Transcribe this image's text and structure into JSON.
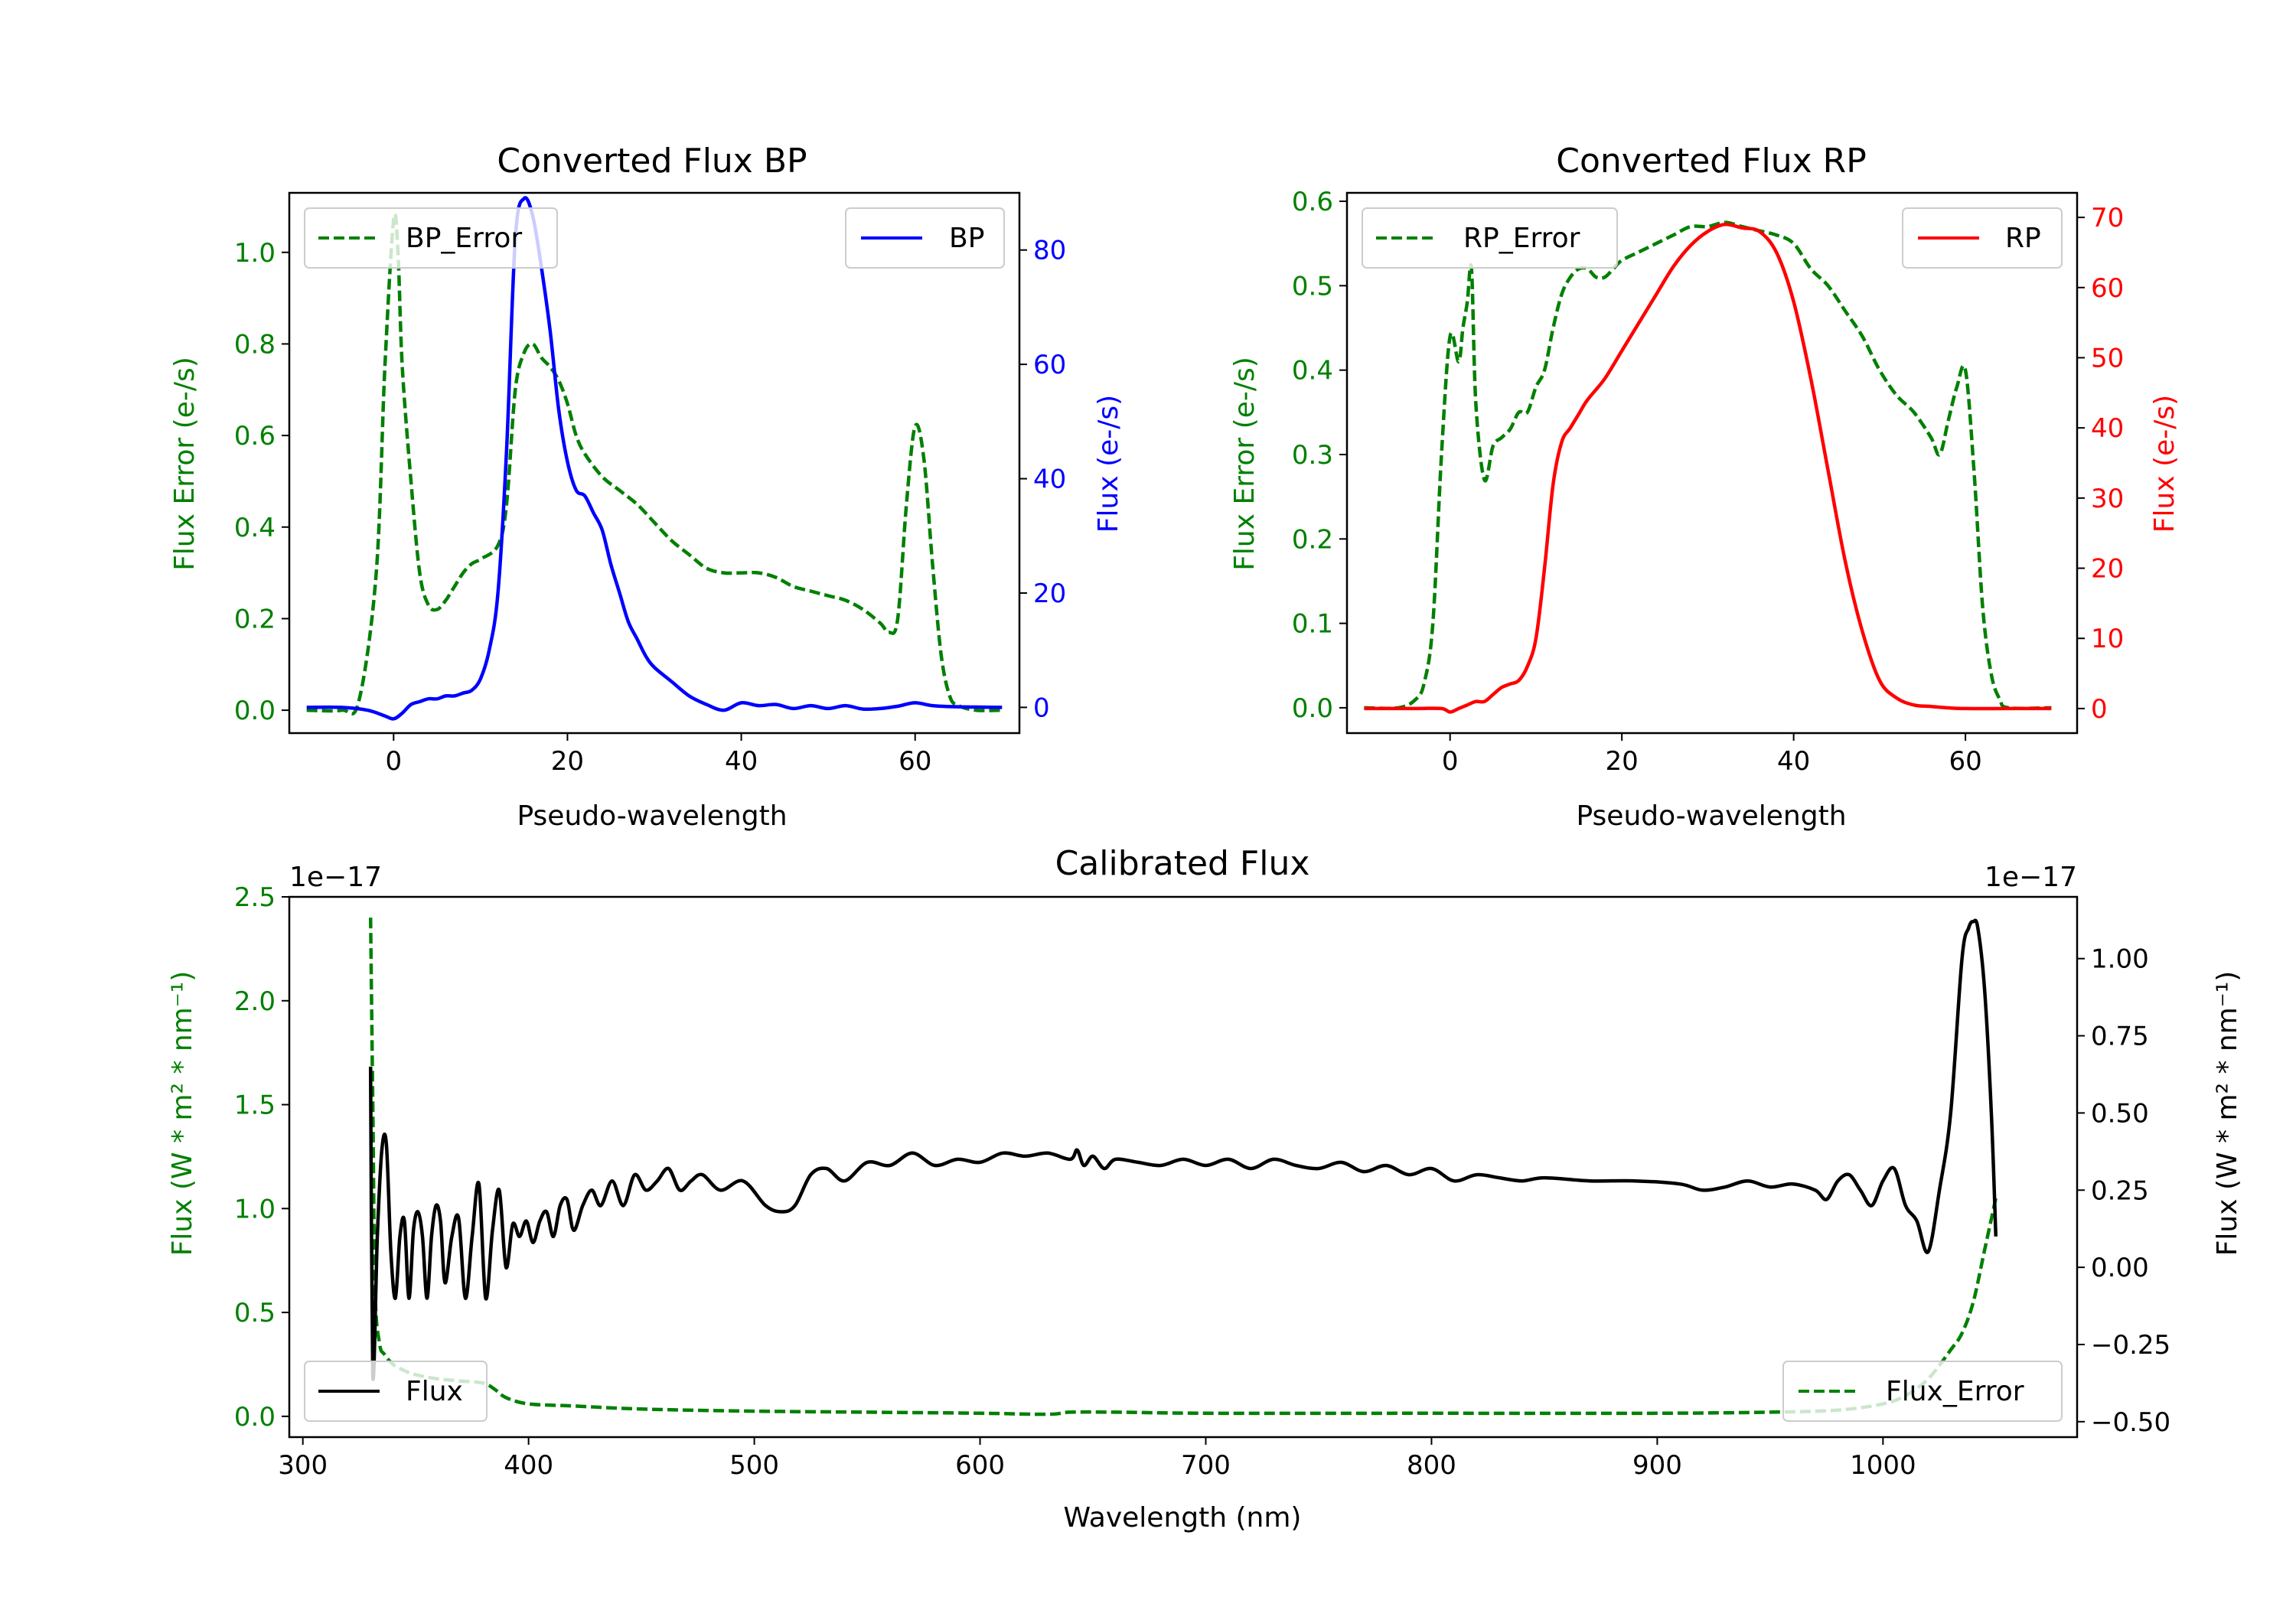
{
  "chart_data": [
    {
      "id": "bp",
      "type": "line",
      "title": "Converted Flux BP",
      "xlabel": "Pseudo-wavelength",
      "ylabel_left": "Flux Error (e-/s)",
      "ylabel_right": "Flux (e-/s)",
      "xlim": [
        -12,
        72
      ],
      "ylim_left": [
        -0.05,
        1.13
      ],
      "ylim_right": [
        -4.5,
        90
      ],
      "xticks": [
        0,
        20,
        40,
        60
      ],
      "yticks_left": [
        0.0,
        0.2,
        0.4,
        0.6,
        0.8,
        1.0
      ],
      "yticks_right": [
        0,
        20,
        40,
        60,
        80
      ],
      "left_color": "#008000",
      "right_color": "#0000ff",
      "legend_left": {
        "label": "BP_Error",
        "position": "upper left"
      },
      "legend_right": {
        "label": "BP",
        "position": "upper right"
      },
      "series": [
        {
          "name": "BP_Error",
          "axis": "left",
          "color": "#008000",
          "style": "dashed",
          "x": [
            -10,
            -6,
            -4,
            -2,
            -1,
            0,
            0.5,
            1,
            2,
            3,
            4,
            5,
            6,
            7,
            8,
            9,
            10,
            12,
            13,
            14,
            15,
            16,
            17,
            18,
            19,
            20,
            21,
            22,
            24,
            26,
            28,
            30,
            32,
            34,
            36,
            38,
            40,
            42,
            44,
            46,
            48,
            50,
            52,
            54,
            56,
            57,
            58,
            59,
            60,
            61,
            62,
            63,
            64,
            65,
            67,
            70
          ],
          "values": [
            0.0,
            0.0,
            0.02,
            0.3,
            0.75,
            1.07,
            1.0,
            0.75,
            0.5,
            0.3,
            0.23,
            0.22,
            0.24,
            0.27,
            0.3,
            0.32,
            0.33,
            0.36,
            0.45,
            0.7,
            0.78,
            0.8,
            0.77,
            0.75,
            0.72,
            0.67,
            0.6,
            0.56,
            0.51,
            0.48,
            0.45,
            0.41,
            0.37,
            0.34,
            0.31,
            0.3,
            0.3,
            0.3,
            0.29,
            0.27,
            0.26,
            0.25,
            0.24,
            0.22,
            0.19,
            0.17,
            0.2,
            0.45,
            0.62,
            0.55,
            0.32,
            0.12,
            0.03,
            0.01,
            0.0,
            0.0
          ]
        },
        {
          "name": "BP",
          "axis": "right",
          "color": "#0000ff",
          "style": "solid",
          "x": [
            -10,
            -6,
            -3,
            -1,
            0,
            1,
            2,
            3,
            4,
            5,
            6,
            7,
            8,
            9,
            10,
            11,
            12,
            13,
            14,
            15,
            16,
            17,
            18,
            19,
            20,
            21,
            22,
            23,
            24,
            25,
            26,
            27,
            28,
            29,
            30,
            32,
            34,
            36,
            38,
            40,
            42,
            44,
            46,
            48,
            50,
            52,
            54,
            56,
            58,
            60,
            62,
            65,
            70
          ],
          "values": [
            0,
            0,
            -0.5,
            -1.5,
            -2,
            -1,
            0.5,
            1,
            1.5,
            1.5,
            2,
            2,
            2.5,
            3,
            5,
            10,
            20,
            45,
            82,
            89,
            86,
            77,
            66,
            52,
            43,
            38,
            37,
            34,
            31,
            25,
            20,
            15,
            12,
            9,
            7,
            4.5,
            2,
            0.5,
            -0.5,
            0.8,
            0.3,
            0.5,
            -0.2,
            0.3,
            -0.2,
            0.3,
            -0.3,
            -0.2,
            0.2,
            0.8,
            0.3,
            0.1,
            0
          ]
        }
      ]
    },
    {
      "id": "rp",
      "type": "line",
      "title": "Converted Flux RP",
      "xlabel": "Pseudo-wavelength",
      "ylabel_left": "Flux Error (e-/s)",
      "ylabel_right": "Flux (e-/s)",
      "xlim": [
        -12,
        73
      ],
      "ylim_left": [
        -0.03,
        0.61
      ],
      "ylim_right": [
        -3.5,
        73.5
      ],
      "xticks": [
        0,
        20,
        40,
        60
      ],
      "yticks_left": [
        0.0,
        0.1,
        0.2,
        0.3,
        0.4,
        0.5,
        0.6
      ],
      "yticks_right": [
        0,
        10,
        20,
        30,
        40,
        50,
        60,
        70
      ],
      "left_color": "#008000",
      "right_color": "#ff0000",
      "legend_left": {
        "label": "RP_Error",
        "position": "upper left"
      },
      "legend_right": {
        "label": "RP",
        "position": "upper right"
      },
      "series": [
        {
          "name": "RP_Error",
          "axis": "left",
          "color": "#008000",
          "style": "dashed",
          "x": [
            -10,
            -6,
            -4,
            -3,
            -2,
            -1,
            0,
            1,
            1.5,
            2,
            2.5,
            3,
            4,
            5,
            6,
            7,
            8,
            9,
            10,
            11,
            12,
            13,
            14,
            15,
            16,
            17,
            18,
            19,
            20,
            22,
            24,
            26,
            28,
            30,
            32,
            34,
            36,
            38,
            40,
            42,
            44,
            46,
            48,
            50,
            52,
            54,
            56,
            57,
            58,
            59,
            60,
            61,
            62,
            63,
            64,
            65,
            70
          ],
          "values": [
            0.0,
            0.0,
            0.01,
            0.03,
            0.1,
            0.3,
            0.44,
            0.41,
            0.45,
            0.48,
            0.52,
            0.36,
            0.27,
            0.31,
            0.32,
            0.33,
            0.35,
            0.35,
            0.38,
            0.4,
            0.45,
            0.49,
            0.51,
            0.52,
            0.52,
            0.51,
            0.51,
            0.52,
            0.53,
            0.54,
            0.55,
            0.56,
            0.57,
            0.57,
            0.575,
            0.57,
            0.565,
            0.56,
            0.55,
            0.52,
            0.5,
            0.47,
            0.44,
            0.4,
            0.37,
            0.35,
            0.32,
            0.3,
            0.34,
            0.38,
            0.4,
            0.28,
            0.12,
            0.04,
            0.01,
            0.0,
            0.0
          ]
        },
        {
          "name": "RP",
          "axis": "right",
          "color": "#ff0000",
          "style": "solid",
          "x": [
            -10,
            -4,
            -1,
            0,
            1,
            2,
            3,
            4,
            5,
            6,
            7,
            8,
            9,
            10,
            11,
            12,
            13,
            14,
            15,
            16,
            18,
            20,
            22,
            24,
            26,
            28,
            30,
            32,
            34,
            36,
            38,
            40,
            42,
            44,
            46,
            48,
            50,
            52,
            54,
            56,
            58,
            60,
            65,
            70
          ],
          "values": [
            0,
            0,
            0,
            -0.5,
            0,
            0.5,
            1,
            1,
            2,
            3,
            3.5,
            4,
            6,
            10,
            20,
            32,
            38,
            40,
            42,
            44,
            47,
            51,
            55,
            59,
            63,
            66,
            68,
            69,
            68.5,
            68,
            65,
            58,
            47,
            34,
            21,
            11,
            4,
            1.5,
            0.5,
            0.3,
            0.1,
            0,
            0,
            0
          ]
        }
      ]
    },
    {
      "id": "calibrated",
      "type": "line",
      "title": "Calibrated Flux",
      "xlabel": "Wavelength (nm)",
      "ylabel_left": "Flux (W * m² * nm⁻¹)",
      "ylabel_right": "Flux (W * m² * nm⁻¹)",
      "offset_text_left": "1e−17",
      "offset_text_right": "1e−17",
      "xlim": [
        294,
        1086
      ],
      "ylim_left": [
        -0.1,
        2.5
      ],
      "ylim_right": [
        -0.55,
        1.2
      ],
      "xticks": [
        300,
        400,
        500,
        600,
        700,
        800,
        900,
        1000
      ],
      "yticks_left": [
        0.0,
        0.5,
        1.0,
        1.5,
        2.0,
        2.5
      ],
      "yticks_right": [
        -0.5,
        -0.25,
        0.0,
        0.25,
        0.5,
        0.75,
        1.0
      ],
      "left_color": "#008000",
      "right_color": "#000000",
      "legend_left": {
        "label": "Flux",
        "position": "lower left"
      },
      "legend_right": {
        "label": "Flux_Error",
        "position": "lower right"
      },
      "series": [
        {
          "name": "Flux_Error",
          "axis": "left",
          "color": "#008000",
          "style": "dashed",
          "x": [
            330,
            331,
            332,
            334,
            336,
            340,
            345,
            350,
            360,
            370,
            380,
            385,
            390,
            400,
            420,
            450,
            500,
            550,
            600,
            630,
            640,
            660,
            700,
            800,
            900,
            950,
            980,
            1000,
            1010,
            1020,
            1030,
            1035,
            1040,
            1045,
            1050
          ],
          "values": [
            2.4,
            1.5,
            0.6,
            0.35,
            0.3,
            0.25,
            0.22,
            0.2,
            0.18,
            0.17,
            0.16,
            0.13,
            0.09,
            0.06,
            0.05,
            0.035,
            0.025,
            0.02,
            0.015,
            0.01,
            0.02,
            0.02,
            0.015,
            0.015,
            0.015,
            0.02,
            0.03,
            0.06,
            0.1,
            0.18,
            0.32,
            0.4,
            0.55,
            0.8,
            1.05
          ]
        },
        {
          "name": "Flux",
          "axis": "right",
          "color": "#000000",
          "style": "solid",
          "x": [
            330,
            331,
            333,
            335,
            337,
            339,
            341,
            343,
            345,
            347,
            349,
            351,
            353,
            355,
            357,
            359,
            361,
            363,
            366,
            369,
            372,
            375,
            378,
            381,
            384,
            387,
            390,
            393,
            396,
            399,
            402,
            405,
            408,
            411,
            414,
            417,
            420,
            424,
            428,
            432,
            437,
            442,
            447,
            452,
            457,
            462,
            467,
            472,
            477,
            485,
            495,
            505,
            512,
            518,
            525,
            532,
            540,
            550,
            560,
            570,
            580,
            590,
            600,
            610,
            620,
            630,
            640,
            643,
            646,
            650,
            655,
            660,
            670,
            680,
            690,
            700,
            710,
            720,
            730,
            740,
            750,
            760,
            770,
            780,
            790,
            800,
            810,
            820,
            830,
            840,
            850,
            870,
            890,
            910,
            920,
            930,
            940,
            950,
            960,
            970,
            975,
            980,
            985,
            990,
            995,
            1000,
            1005,
            1010,
            1015,
            1020,
            1025,
            1030,
            1035,
            1038,
            1040,
            1042,
            1045,
            1048,
            1050
          ],
          "values": [
            0.65,
            -0.35,
            0.1,
            0.38,
            0.4,
            0.05,
            -0.1,
            0.1,
            0.15,
            -0.1,
            0.12,
            0.18,
            0.1,
            -0.1,
            0.1,
            0.2,
            0.15,
            -0.05,
            0.1,
            0.16,
            -0.1,
            0.1,
            0.27,
            -0.1,
            0.12,
            0.25,
            0.0,
            0.14,
            0.1,
            0.15,
            0.08,
            0.15,
            0.18,
            0.1,
            0.2,
            0.22,
            0.12,
            0.2,
            0.25,
            0.2,
            0.28,
            0.2,
            0.3,
            0.25,
            0.28,
            0.32,
            0.25,
            0.28,
            0.3,
            0.25,
            0.28,
            0.2,
            0.18,
            0.2,
            0.3,
            0.32,
            0.28,
            0.34,
            0.33,
            0.37,
            0.33,
            0.35,
            0.34,
            0.37,
            0.36,
            0.37,
            0.35,
            0.38,
            0.33,
            0.36,
            0.32,
            0.35,
            0.34,
            0.33,
            0.35,
            0.33,
            0.35,
            0.32,
            0.35,
            0.33,
            0.32,
            0.34,
            0.31,
            0.33,
            0.3,
            0.32,
            0.28,
            0.3,
            0.29,
            0.28,
            0.29,
            0.28,
            0.28,
            0.27,
            0.25,
            0.26,
            0.28,
            0.26,
            0.27,
            0.25,
            0.22,
            0.28,
            0.3,
            0.25,
            0.2,
            0.28,
            0.32,
            0.2,
            0.15,
            0.05,
            0.25,
            0.5,
            1.0,
            1.1,
            1.12,
            1.1,
            0.9,
            0.5,
            0.1
          ]
        }
      ]
    }
  ]
}
